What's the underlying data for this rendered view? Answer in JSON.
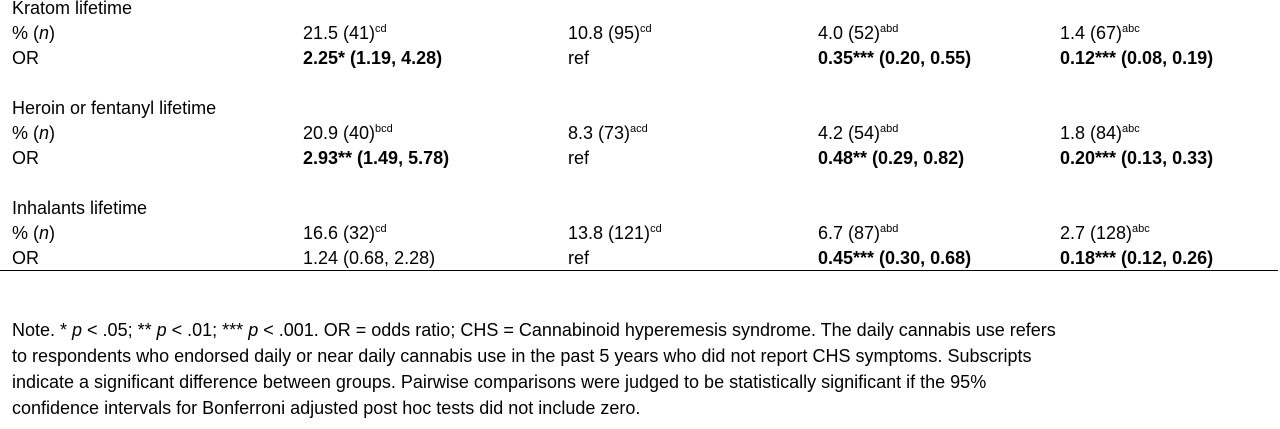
{
  "table": {
    "sections": [
      {
        "label": "Kratom lifetime",
        "rows": [
          {
            "label": [
              {
                "text": "% ("
              },
              {
                "text": "n",
                "italic": true
              },
              {
                "text": ")"
              }
            ],
            "cells": [
              {
                "text": "21.5 (41)",
                "sup": "cd"
              },
              {
                "text": "10.8 (95)",
                "sup": "cd"
              },
              {
                "text": "4.0 (52)",
                "sup": "abd"
              },
              {
                "text": "1.4 (67)",
                "sup": "abc"
              }
            ]
          },
          {
            "label": [
              {
                "text": "OR"
              }
            ],
            "cells": [
              {
                "text": "2.25* (1.19, 4.28)",
                "bold": true
              },
              {
                "text": "ref"
              },
              {
                "text": "0.35*** (0.20, 0.55)",
                "bold": true
              },
              {
                "text": "0.12*** (0.08, 0.19)",
                "bold": true
              }
            ]
          }
        ]
      },
      {
        "label": "Heroin or fentanyl lifetime",
        "rows": [
          {
            "label": [
              {
                "text": "% ("
              },
              {
                "text": "n",
                "italic": true
              },
              {
                "text": ")"
              }
            ],
            "cells": [
              {
                "text": "20.9 (40)",
                "sup": "bcd"
              },
              {
                "text": "8.3 (73)",
                "sup": "acd"
              },
              {
                "text": "4.2 (54)",
                "sup": "abd"
              },
              {
                "text": "1.8 (84)",
                "sup": "abc"
              }
            ]
          },
          {
            "label": [
              {
                "text": "OR"
              }
            ],
            "cells": [
              {
                "text": "2.93** (1.49, 5.78)",
                "bold": true
              },
              {
                "text": "ref"
              },
              {
                "text": "0.48** (0.29, 0.82)",
                "bold": true
              },
              {
                "text": "0.20*** (0.13, 0.33)",
                "bold": true
              }
            ]
          }
        ]
      },
      {
        "label": "Inhalants lifetime",
        "rows": [
          {
            "label": [
              {
                "text": "% ("
              },
              {
                "text": "n",
                "italic": true
              },
              {
                "text": ")"
              }
            ],
            "cells": [
              {
                "text": "16.6 (32)",
                "sup": "cd"
              },
              {
                "text": "13.8 (121)",
                "sup": "cd"
              },
              {
                "text": "6.7 (87)",
                "sup": "abd"
              },
              {
                "text": "2.7 (128)",
                "sup": "abc"
              }
            ]
          },
          {
            "label": [
              {
                "text": "OR"
              }
            ],
            "cells": [
              {
                "text": "1.24 (0.68, 2.28)"
              },
              {
                "text": "ref"
              },
              {
                "text": "0.45*** (0.30, 0.68)",
                "bold": true
              },
              {
                "text": "0.18*** (0.12, 0.26)",
                "bold": true
              }
            ]
          }
        ]
      }
    ]
  },
  "note": {
    "lines": [
      [
        {
          "text": "Note. * "
        },
        {
          "text": "p",
          "italic": true
        },
        {
          "text": " < .05; ** "
        },
        {
          "text": "p",
          "italic": true
        },
        {
          "text": " < .01; *** "
        },
        {
          "text": "p",
          "italic": true
        },
        {
          "text": " < .001. OR = odds ratio; CHS = Cannabinoid hyperemesis syndrome. The daily cannabis use refers"
        }
      ],
      [
        {
          "text": "to respondents who endorsed daily or near daily cannabis use in the past 5 years who did not report CHS symptoms. Subscripts"
        }
      ],
      [
        {
          "text": "indicate a significant difference between groups. Pairwise comparisons were judged to be statistically significant if the 95%"
        }
      ],
      [
        {
          "text": "confidence intervals for Bonferroni adjusted post hoc tests did not include zero."
        }
      ]
    ]
  }
}
